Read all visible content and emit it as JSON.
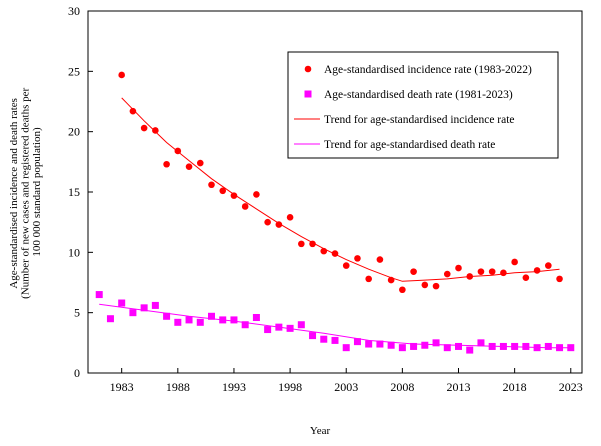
{
  "chart_data": {
    "type": "scatter",
    "title": "",
    "xlabel": "Year",
    "ylabel": [
      "Age-standardised incidence and death rates",
      "(Number of new cases and registered deaths per",
      "100 000 standard population)"
    ],
    "xlim": [
      1980,
      2024
    ],
    "ylim": [
      0,
      30
    ],
    "x_ticks": [
      1983,
      1988,
      1993,
      1998,
      2003,
      2008,
      2013,
      2018,
      2023
    ],
    "y_ticks": [
      0,
      5,
      10,
      15,
      20,
      25,
      30
    ],
    "grid": false,
    "legend_position": "top-right",
    "series": [
      {
        "name": "Age-standardised incidence rate (1983-2022)",
        "kind": "points",
        "marker": "circle",
        "color": "#ff0000",
        "x": [
          1983,
          1984,
          1985,
          1986,
          1987,
          1988,
          1989,
          1990,
          1991,
          1992,
          1993,
          1994,
          1995,
          1996,
          1997,
          1998,
          1999,
          2000,
          2001,
          2002,
          2003,
          2004,
          2005,
          2006,
          2007,
          2008,
          2009,
          2010,
          2011,
          2012,
          2013,
          2014,
          2015,
          2016,
          2017,
          2018,
          2019,
          2020,
          2021,
          2022
        ],
        "y": [
          24.7,
          21.7,
          20.3,
          20.1,
          17.3,
          18.4,
          17.1,
          17.4,
          15.6,
          15.1,
          14.7,
          13.8,
          14.8,
          12.5,
          12.3,
          12.9,
          10.7,
          10.7,
          10.1,
          9.9,
          8.9,
          9.5,
          7.8,
          9.4,
          7.7,
          6.9,
          8.4,
          7.3,
          7.2,
          8.2,
          8.7,
          8.0,
          8.4,
          8.4,
          8.3,
          9.2,
          7.9,
          8.5,
          8.9,
          7.8
        ]
      },
      {
        "name": "Age-standardised death rate (1981-2023)",
        "kind": "points",
        "marker": "square",
        "color": "#ff00ff",
        "x": [
          1981,
          1982,
          1983,
          1984,
          1985,
          1986,
          1987,
          1988,
          1989,
          1990,
          1991,
          1992,
          1993,
          1994,
          1995,
          1996,
          1997,
          1998,
          1999,
          2000,
          2001,
          2002,
          2003,
          2004,
          2005,
          2006,
          2007,
          2008,
          2009,
          2010,
          2011,
          2012,
          2013,
          2014,
          2015,
          2016,
          2017,
          2018,
          2019,
          2020,
          2021,
          2022,
          2023
        ],
        "y": [
          6.5,
          4.5,
          5.8,
          5.0,
          5.4,
          5.6,
          4.7,
          4.2,
          4.4,
          4.2,
          4.7,
          4.4,
          4.4,
          4.0,
          4.6,
          3.6,
          3.8,
          3.7,
          4.0,
          3.1,
          2.8,
          2.7,
          2.1,
          2.6,
          2.4,
          2.4,
          2.3,
          2.1,
          2.2,
          2.3,
          2.5,
          2.1,
          2.2,
          1.9,
          2.5,
          2.2,
          2.2,
          2.2,
          2.2,
          2.1,
          2.2,
          2.1,
          2.1
        ]
      },
      {
        "name": "Trend for age-standardised incidence rate",
        "kind": "line",
        "color": "#ff0000",
        "x": [
          1983,
          1985,
          1987,
          1989,
          1991,
          1993,
          1995,
          1997,
          1999,
          2001,
          2003,
          2005,
          2007,
          2008,
          2010,
          2012,
          2014,
          2016,
          2018,
          2020,
          2022
        ],
        "y": [
          22.8,
          20.9,
          19.1,
          17.6,
          16.1,
          14.8,
          13.6,
          12.4,
          11.3,
          10.3,
          9.4,
          8.6,
          7.9,
          7.6,
          7.7,
          7.8,
          8.0,
          8.1,
          8.3,
          8.4,
          8.6
        ]
      },
      {
        "name": "Trend for age-standardised death rate",
        "kind": "line",
        "color": "#ff00ff",
        "x": [
          1981,
          1985,
          1989,
          1993,
          1997,
          2001,
          2005,
          2009,
          2013,
          2017,
          2021,
          2023
        ],
        "y": [
          5.7,
          5.2,
          4.7,
          4.3,
          3.8,
          3.3,
          2.7,
          2.4,
          2.3,
          2.2,
          2.1,
          2.1
        ]
      }
    ]
  }
}
